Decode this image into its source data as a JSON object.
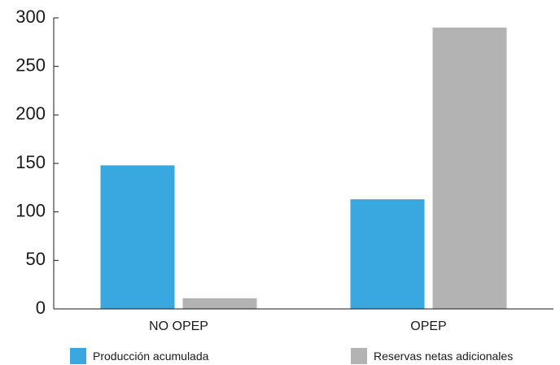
{
  "chart_data": {
    "type": "bar",
    "title": "",
    "xlabel": "",
    "ylabel": "",
    "categories": [
      "NO OPEP",
      "OPEP"
    ],
    "series": [
      {
        "name": "Producción acumulada",
        "values": [
          148,
          113
        ],
        "color": "#3aa8e0"
      },
      {
        "name": "Reservas netas adicionales",
        "values": [
          11,
          290
        ],
        "color": "#b3b3b3"
      }
    ],
    "ylim": [
      0,
      300
    ],
    "yticks": [
      0,
      50,
      100,
      150,
      200,
      250,
      300
    ],
    "grid": false,
    "legend_position": "bottom"
  }
}
